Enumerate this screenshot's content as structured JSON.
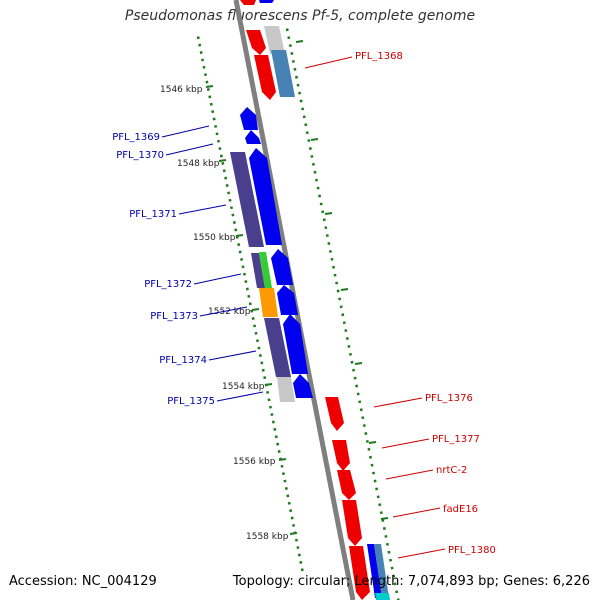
{
  "title": "Pseudomonas fluorescens Pf-5, complete genome",
  "footer": {
    "accession": "Accession: NC_004129",
    "summary": "Topology: circular; Length: 7,074,893 bp; Genes: 6,226"
  },
  "colors": {
    "forward_gene": "#0000ee",
    "reverse_gene": "#ee0000",
    "left_label": "#0000aa",
    "right_label": "#cc0000",
    "tick": "#1f7a1f",
    "backbone": "#808080",
    "gene_purple": "#4a3f8c",
    "gene_green": "#33cc33",
    "gene_orange": "#ff9900",
    "gene_gray": "#c8c8c8",
    "gene_steelblue": "#4682b4",
    "gene_cyan": "#00cccc"
  },
  "scale": {
    "unit": "kbp",
    "ticks": [
      {
        "kbp": 1546,
        "label": "1546 kbp"
      },
      {
        "kbp": 1548,
        "label": "1548 kbp"
      },
      {
        "kbp": 1550,
        "label": "1550 kbp"
      },
      {
        "kbp": 1552,
        "label": "1552 kbp"
      },
      {
        "kbp": 1554,
        "label": "1554 kbp"
      },
      {
        "kbp": 1556,
        "label": "1556 kbp"
      },
      {
        "kbp": 1558,
        "label": "1558 kbp"
      }
    ]
  },
  "gene_labels": {
    "left": [
      "PFL_1369",
      "PFL_1370",
      "PFL_1371",
      "PFL_1372",
      "PFL_1373",
      "PFL_1374",
      "PFL_1375"
    ],
    "right": [
      "PFL_1368",
      "PFL_1376",
      "PFL_1377",
      "nrtC-2",
      "fadE16",
      "PFL_1380"
    ]
  }
}
